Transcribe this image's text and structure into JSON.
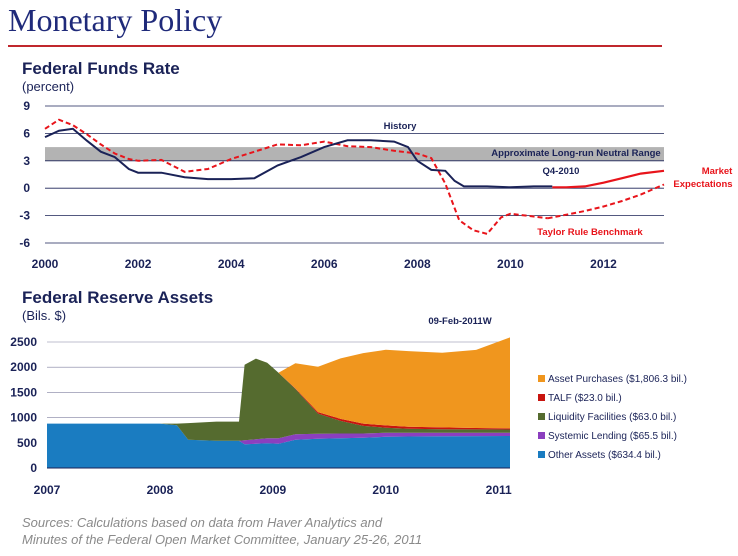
{
  "page": {
    "title": "Monetary Policy",
    "sources_line1": "Sources: Calculations based on data from Haver Analytics and",
    "sources_line2": "Minutes of the Federal Open Market Committee, January 25-26, 2011"
  },
  "colors": {
    "title": "#1f2a7a",
    "rule": "#c0272d",
    "history": "#1a2257",
    "taylor": "#e8141b",
    "band": "#b3b3b3",
    "other_assets": "#1a7cc1",
    "systemic_lending": "#8b3fbf",
    "liquidity": "#556b2f",
    "talf": "#c8140f",
    "asset_purchases": "#f0961e"
  },
  "chart_data": [
    {
      "type": "line",
      "title": "Federal Funds Rate",
      "ylabel": "(percent)",
      "ylim": [
        -6,
        9
      ],
      "xlim": [
        2000,
        2013.3
      ],
      "yticks": [
        "9",
        "6",
        "3",
        "0",
        "-3",
        "-6"
      ],
      "xticks": [
        "2000",
        "2002",
        "2004",
        "2006",
        "2008",
        "2010",
        "2012"
      ],
      "band": {
        "label": "Approximate Long-run Neutral Range",
        "from": 3.0,
        "to": 4.5
      },
      "annotations": {
        "history": "History",
        "q4": "Q4-2010",
        "market_1": "Market",
        "market_2": "Expectations",
        "taylor": "Taylor Rule Benchmark"
      },
      "series": [
        {
          "name": "History",
          "x": [
            2000,
            2000.3,
            2000.6,
            2000.9,
            2001.2,
            2001.5,
            2001.8,
            2002.0,
            2002.5,
            2003.0,
            2003.5,
            2004.0,
            2004.5,
            2005.0,
            2005.5,
            2006.0,
            2006.5,
            2007.0,
            2007.5,
            2007.8,
            2008.0,
            2008.3,
            2008.6,
            2008.8,
            2009.0,
            2009.5,
            2010.0,
            2010.5,
            2010.9
          ],
          "y": [
            5.6,
            6.3,
            6.5,
            5.2,
            4.0,
            3.4,
            2.1,
            1.7,
            1.7,
            1.2,
            1.0,
            1.0,
            1.1,
            2.5,
            3.4,
            4.5,
            5.25,
            5.25,
            5.1,
            4.5,
            3.0,
            2.0,
            1.9,
            0.8,
            0.2,
            0.2,
            0.1,
            0.2,
            0.2
          ]
        },
        {
          "name": "Taylor Rule Benchmark",
          "x": [
            2000,
            2000.3,
            2000.6,
            2000.9,
            2001.2,
            2001.5,
            2001.8,
            2002.0,
            2002.5,
            2003.0,
            2003.5,
            2004.0,
            2004.5,
            2005.0,
            2005.5,
            2006.0,
            2006.5,
            2007.0,
            2007.5,
            2008.0,
            2008.3,
            2008.6,
            2008.9,
            2009.2,
            2009.5,
            2009.8,
            2010.0,
            2010.5,
            2010.8
          ],
          "y": [
            6.5,
            7.5,
            6.9,
            5.9,
            4.8,
            3.8,
            3.2,
            3.0,
            3.1,
            1.8,
            2.1,
            3.2,
            4.0,
            4.8,
            4.7,
            5.1,
            4.6,
            4.5,
            4.1,
            3.8,
            3.3,
            0.5,
            -3.5,
            -4.6,
            -5.0,
            -3.2,
            -2.8,
            -3.1,
            -3.3
          ]
        },
        {
          "name": "Market Expectations",
          "x": [
            2010.9,
            2011.2,
            2011.6,
            2012.0,
            2012.4,
            2012.8,
            2013.3
          ],
          "y": [
            0.1,
            0.1,
            0.2,
            0.6,
            1.1,
            1.6,
            1.9
          ]
        },
        {
          "name": "Taylor Rule Projection",
          "x": [
            2010.8,
            2011.2,
            2011.6,
            2012.0,
            2012.4,
            2012.8,
            2013.3
          ],
          "y": [
            -3.3,
            -2.9,
            -2.5,
            -2.0,
            -1.4,
            -0.7,
            0.4
          ]
        }
      ]
    },
    {
      "type": "area",
      "title": "Federal Reserve Assets",
      "ylabel": "(Bils. $)",
      "date_label": "09-Feb-2011W",
      "ylim": [
        0,
        2500
      ],
      "xlim": [
        2007,
        2011.1
      ],
      "yticks": [
        "2500",
        "2000",
        "1500",
        "1000",
        "500",
        "0"
      ],
      "xticks": [
        "2007",
        "2008",
        "2009",
        "2010",
        "2011"
      ],
      "x": [
        2007.0,
        2007.5,
        2008.0,
        2008.15,
        2008.25,
        2008.5,
        2008.7,
        2008.75,
        2008.85,
        2008.95,
        2009.05,
        2009.2,
        2009.4,
        2009.6,
        2009.8,
        2010.0,
        2010.2,
        2010.5,
        2010.8,
        2011.1
      ],
      "series": [
        {
          "name": "Other Assets ($634.4 bil.)",
          "values": [
            880,
            880,
            880,
            850,
            560,
            540,
            540,
            470,
            480,
            490,
            480,
            560,
            580,
            590,
            600,
            620,
            625,
            630,
            632,
            634
          ]
        },
        {
          "name": "Systemic Lending ($65.5 bil.)",
          "values": [
            0,
            0,
            0,
            0,
            0,
            0,
            0,
            80,
            90,
            100,
            110,
            110,
            100,
            95,
            85,
            80,
            75,
            70,
            68,
            66
          ]
        },
        {
          "name": "Liquidity Facilities ($63.0 bil.)",
          "values": [
            0,
            0,
            0,
            30,
            330,
            380,
            380,
            1500,
            1600,
            1500,
            1300,
            900,
            400,
            250,
            150,
            100,
            80,
            70,
            65,
            63
          ]
        },
        {
          "name": "TALF ($23.0 bil.)",
          "values": [
            0,
            0,
            0,
            0,
            0,
            0,
            0,
            0,
            0,
            0,
            0,
            10,
            30,
            40,
            45,
            45,
            40,
            35,
            28,
            23
          ]
        },
        {
          "name": "Asset Purchases ($1,806.3 bil.)",
          "values": [
            0,
            0,
            0,
            0,
            0,
            0,
            0,
            0,
            0,
            0,
            0,
            500,
            900,
            1200,
            1400,
            1500,
            1500,
            1480,
            1550,
            1806
          ]
        }
      ]
    }
  ]
}
